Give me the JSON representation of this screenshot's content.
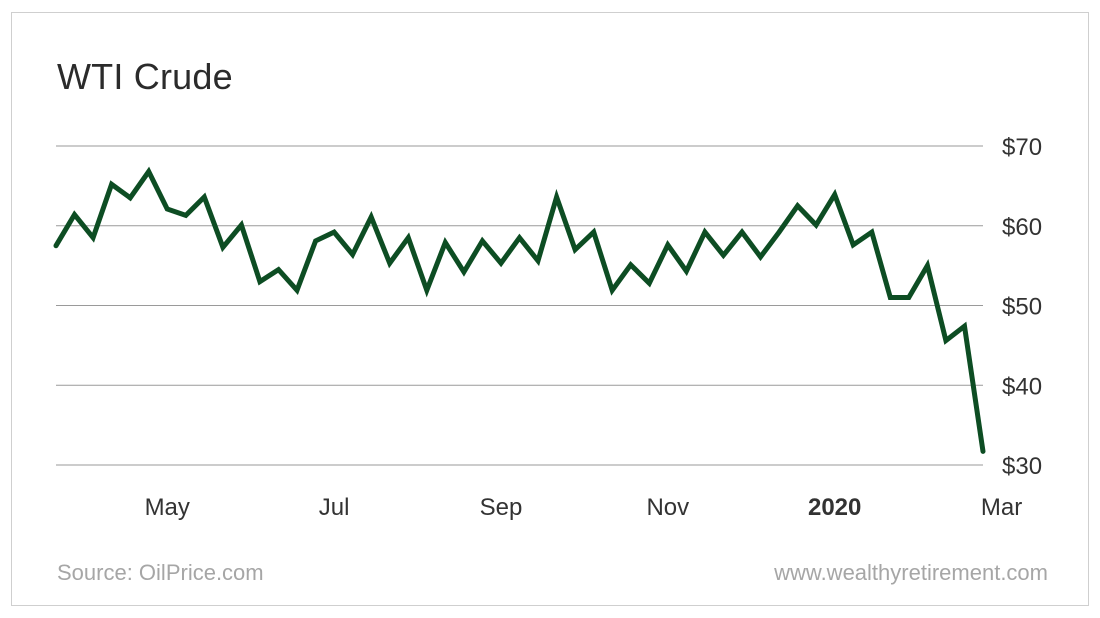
{
  "header": {
    "title": "WTI Crude"
  },
  "footer": {
    "source": "Source: OilPrice.com",
    "site": "www.wealthyretirement.com"
  },
  "colors": {
    "line": "#0d4d23",
    "grid": "#9a9a9a",
    "text": "#333333",
    "muted": "#a6a6a6"
  },
  "chart_data": {
    "type": "line",
    "title": "WTI Crude",
    "xlabel": "",
    "ylabel": "",
    "ylim": [
      30,
      70
    ],
    "grid": true,
    "y_axis_side": "right",
    "y_ticks": [
      30,
      40,
      50,
      60,
      70
    ],
    "y_tick_labels": [
      "$30",
      "$40",
      "$50",
      "$60",
      "$70"
    ],
    "x_ticks": [
      {
        "label": "May",
        "at": 6,
        "bold": false
      },
      {
        "label": "Jul",
        "at": 15,
        "bold": false
      },
      {
        "label": "Sep",
        "at": 24,
        "bold": false
      },
      {
        "label": "Nov",
        "at": 33,
        "bold": false
      },
      {
        "label": "2020",
        "at": 42,
        "bold": true
      },
      {
        "label": "Mar",
        "at": 51,
        "bold": false
      }
    ],
    "series": [
      {
        "values": [
          57.5,
          61.4,
          58.5,
          65.2,
          63.5,
          66.8,
          62.1,
          61.3,
          63.6,
          57.3,
          60.1,
          53.0,
          54.5,
          51.9,
          58.1,
          59.2,
          56.4,
          61.1,
          55.3,
          58.5,
          51.9,
          57.9,
          54.2,
          58.1,
          55.3,
          58.5,
          55.6,
          63.6,
          57.0,
          59.2,
          51.9,
          55.1,
          52.8,
          57.6,
          54.3,
          59.2,
          56.3,
          59.2,
          56.1,
          59.2,
          62.5,
          60.1,
          63.9,
          57.6,
          59.2,
          51.0,
          51.0,
          55.0,
          45.6,
          47.4,
          31.7
        ]
      }
    ]
  }
}
